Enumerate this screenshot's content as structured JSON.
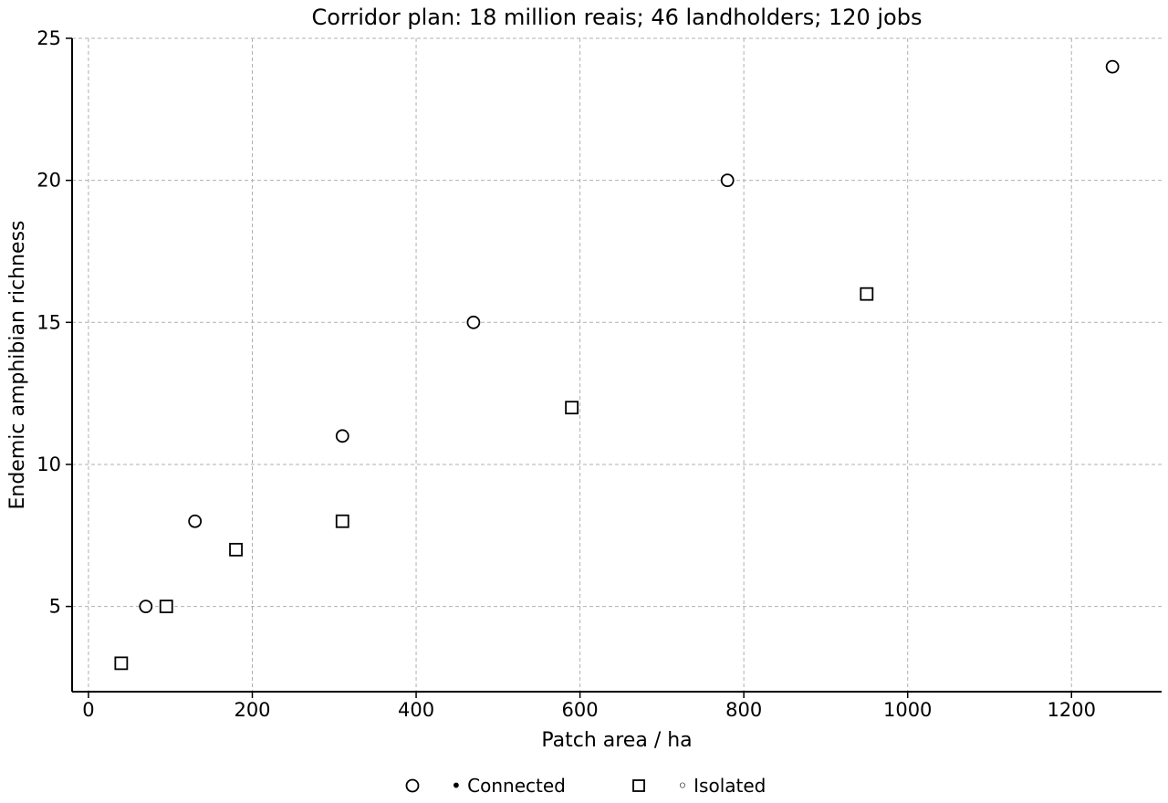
{
  "chart_data": {
    "type": "scatter",
    "title": "Corridor plan: 18 million reais; 46 landholders; 120 jobs",
    "xlabel": "Patch area / ha",
    "ylabel": "Endemic amphibian richness",
    "xlim": [
      -20,
      1310
    ],
    "ylim": [
      2,
      25
    ],
    "xticks": [
      0,
      200,
      400,
      600,
      800,
      1000,
      1200
    ],
    "yticks": [
      5,
      10,
      15,
      20,
      25
    ],
    "grid": true,
    "legend_position": "bottom-center",
    "series": [
      {
        "name": "• Connected",
        "marker": "circle",
        "color": "#000000",
        "points": [
          [
            70,
            5
          ],
          [
            130,
            8
          ],
          [
            310,
            11
          ],
          [
            470,
            15
          ],
          [
            780,
            20
          ],
          [
            1250,
            24
          ]
        ]
      },
      {
        "name": "◦ Isolated",
        "marker": "square",
        "color": "#000000",
        "points": [
          [
            40,
            3
          ],
          [
            95,
            5
          ],
          [
            180,
            7
          ],
          [
            310,
            8
          ],
          [
            590,
            12
          ],
          [
            950,
            16
          ]
        ]
      }
    ]
  }
}
